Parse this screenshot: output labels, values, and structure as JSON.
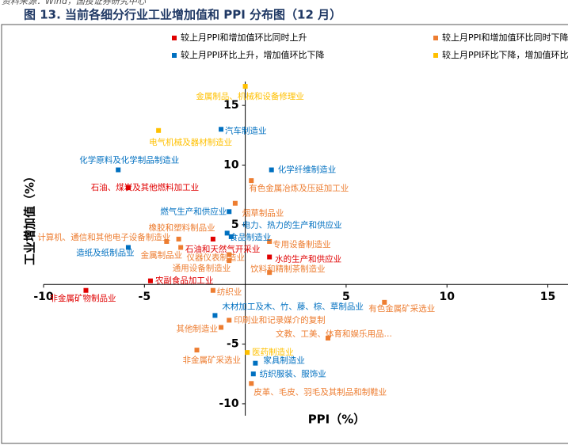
{
  "chart_data": {
    "type": "scatter",
    "source": "资料来源：Wind，国投证券研究中心",
    "title": "图 13. 当前各细分行业工业增加值和 PPI 分布图（12 月）",
    "xlabel": "PPI（%）",
    "ylabel": "工业增加值（%）",
    "xlim": [
      -10,
      16
    ],
    "ylim": [
      -11,
      17
    ],
    "xticks": [
      -10,
      -5,
      5,
      10,
      15
    ],
    "yticks": [
      -10,
      -5,
      5,
      10,
      15
    ],
    "series": [
      {
        "name": "较上月PPI和增加值环比同时上升",
        "color": "#e00000",
        "x": [
          -5.8,
          -1.6,
          1.2,
          -4.7,
          -7.9
        ],
        "values": [
          8.1,
          3.8,
          2.3,
          0.3,
          -0.5
        ],
        "labels": [
          "石油、煤炭及其他燃料加工业",
          "石油和天然气开采业",
          "水的生产和供应业",
          "农副食品加工业",
          "非金属矿物制品业"
        ]
      },
      {
        "name": "较上月PPI和增加值环比同时下降",
        "color": "#ed7d31",
        "x": [
          0.3,
          -0.5,
          -3.3,
          -3.9,
          -3.2,
          1.2,
          1.2,
          -1.6,
          6.9,
          -0.8,
          -1.2,
          4.1,
          -2.4,
          0.3,
          -0.8,
          -0.8
        ],
        "values": [
          8.7,
          6.8,
          3.8,
          3.6,
          3.1,
          3.6,
          1.0,
          -0.5,
          -1.5,
          -3.0,
          -3.6,
          -4.5,
          -5.5,
          -8.3,
          2.0,
          2.5
        ],
        "labels": [
          "有色金属冶炼及压延加工业",
          "烟草制品业",
          "橡胶和塑料制品业",
          "计算机、通信和其他电子设备制造业",
          "金属制品业",
          "专用设备制造业",
          "饮料和精制茶制造业",
          "纺织业",
          "有色金属矿采选业",
          "印刷业和记录媒介的复制",
          "其他制造业",
          "文教、工美、体育和娱乐用品…",
          "非金属矿采选业",
          "皮革、毛皮、羽毛及其制品和制鞋业",
          "通用设备制造业",
          "仪器仪表制造业"
        ]
      },
      {
        "name": "较上月PPI环比上升，增加值环比下降",
        "color": "#0070c0",
        "x": [
          -1.2,
          -6.3,
          1.3,
          -0.8,
          -0.9,
          -0.7,
          -5.8,
          -1.5,
          0.5,
          0.4
        ],
        "values": [
          13.0,
          9.6,
          9.6,
          6.1,
          4.3,
          4.0,
          3.1,
          -2.6,
          -6.6,
          -7.5
        ],
        "labels": [
          "汽车制造业",
          "化学原料及化学制品制造业",
          "化学纤维制造业",
          "燃气生产和供应业",
          "电力、热力的生产和供应业",
          "食品制造业",
          "造纸及纸制品业",
          "木材加工及木、竹、藤、棕、草制品业",
          "家具制造业",
          "纺织服装、服饰业"
        ]
      },
      {
        "name": "较上月PPI环比下降，增加值环比上升",
        "color": "#ffc000",
        "x": [
          0,
          -4.3,
          0.1
        ],
        "values": [
          16.6,
          12.9,
          -5.7
        ],
        "labels": [
          "金属制品、机械和设备修理业",
          "电气机械及器材制造业",
          "医药制造业"
        ]
      }
    ]
  }
}
